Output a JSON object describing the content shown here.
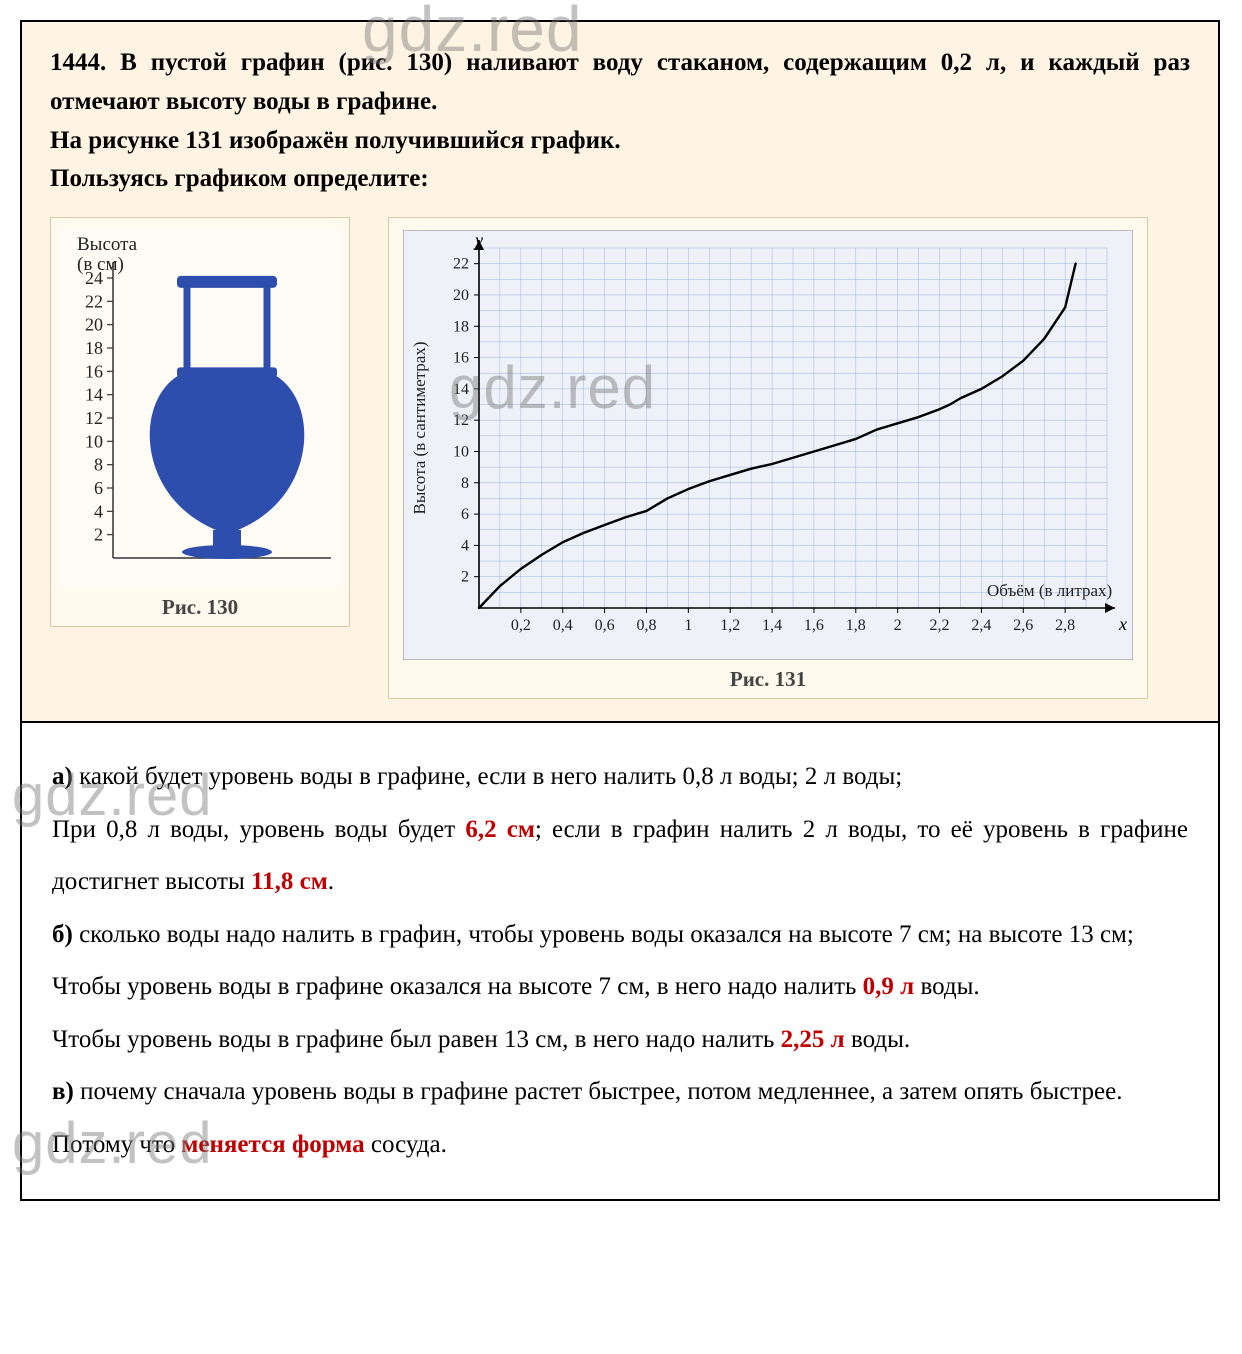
{
  "watermark": "gdz.red",
  "problem": {
    "number": "1444.",
    "line1": "В пустой графин (рис. 130) наливают воду стаканом, содержащим 0,2 л, и каждый раз отмечают высоту воды в графине.",
    "line2": "На рисунке 131 изображён получившийся график.",
    "line3": "Пользуясь графиком определите:"
  },
  "fig130": {
    "y_axis_label_1": "Высота",
    "y_axis_label_2": "(в см)",
    "y_ticks": [
      2,
      4,
      6,
      8,
      10,
      12,
      14,
      16,
      18,
      20,
      22,
      24
    ],
    "caption": "Рис. 130",
    "jug_color": "#2e4eae",
    "scale_line_color": "#333333",
    "background": "#fefcf4"
  },
  "chart": {
    "caption": "Рис. 131",
    "y_letter": "y",
    "x_letter": "x",
    "y_label": "Высота (в сантиметрах)",
    "x_label": "Объём (в литрах)",
    "x_ticks": [
      "0,2",
      "0,4",
      "0,6",
      "0,8",
      "1",
      "1,2",
      "1,4",
      "1,6",
      "1,8",
      "2",
      "2,2",
      "2,4",
      "2,6",
      "2,8"
    ],
    "y_ticks": [
      2,
      4,
      6,
      8,
      10,
      12,
      14,
      16,
      18,
      20,
      22
    ],
    "grid_color": "#8aa5d6",
    "axis_color": "#000000",
    "curve_color": "#000000",
    "background": "#eef1f8",
    "curve_pts": [
      [
        0.0,
        0.0
      ],
      [
        0.1,
        1.4
      ],
      [
        0.2,
        2.5
      ],
      [
        0.3,
        3.4
      ],
      [
        0.4,
        4.2
      ],
      [
        0.5,
        4.8
      ],
      [
        0.6,
        5.3
      ],
      [
        0.7,
        5.8
      ],
      [
        0.8,
        6.2
      ],
      [
        0.9,
        7.0
      ],
      [
        1.0,
        7.6
      ],
      [
        1.1,
        8.1
      ],
      [
        1.2,
        8.5
      ],
      [
        1.3,
        8.9
      ],
      [
        1.4,
        9.2
      ],
      [
        1.5,
        9.6
      ],
      [
        1.6,
        10.0
      ],
      [
        1.7,
        10.4
      ],
      [
        1.8,
        10.8
      ],
      [
        1.9,
        11.4
      ],
      [
        2.0,
        11.8
      ],
      [
        2.1,
        12.2
      ],
      [
        2.2,
        12.7
      ],
      [
        2.25,
        13.0
      ],
      [
        2.3,
        13.4
      ],
      [
        2.4,
        14.0
      ],
      [
        2.5,
        14.8
      ],
      [
        2.6,
        15.8
      ],
      [
        2.7,
        17.2
      ],
      [
        2.8,
        19.2
      ],
      [
        2.85,
        22.0
      ]
    ],
    "x_max": 3.0,
    "y_max": 23
  },
  "answers": {
    "a_q": "какой будет уровень воды в графине, если в него налить 0,8 л воды; 2 л воды;",
    "a_ans_p1": "При 0,8 л воды,  уровень воды будет ",
    "a_val1": "6,2 см",
    "a_ans_p2": "; если в графин налить 2 л воды, то её уровень в графине достигнет высоты ",
    "a_val2": "11,8 см",
    "a_ans_p3": ".",
    "b_q": "сколько воды надо налить в графин, чтобы уровень воды оказался на высоте 7 см; на высоте 13 см;",
    "b_ans1_p1": "Чтобы уровень воды в графине оказался на высоте 7 см, в него надо налить ",
    "b_val1": "0,9 л",
    "b_ans1_p2": " воды.",
    "b_ans2_p1": "Чтобы уровень воды в графине был равен 13 см, в него надо налить ",
    "b_val2": "2,25 л",
    "b_ans2_p2": " воды.",
    "c_q": "почему сначала уровень воды в графине растет быстрее, потом медленнее, а затем опять быстрее.",
    "c_ans_p1": "Потому что ",
    "c_val": "меняется форма",
    "c_ans_p2": " сосуда."
  },
  "labels": {
    "a": "а)",
    "b": "б)",
    "c": "в)"
  }
}
